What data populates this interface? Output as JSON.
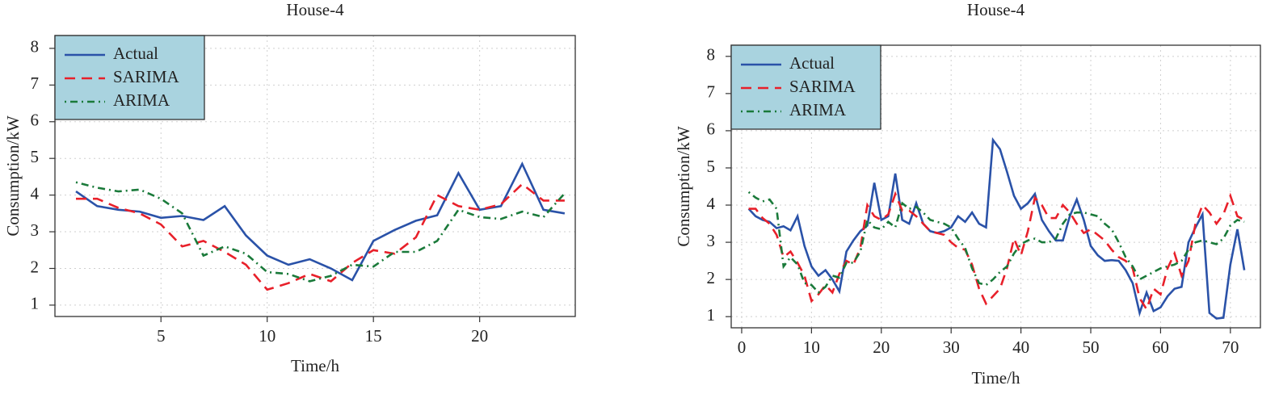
{
  "chart_data": [
    {
      "type": "line",
      "title": "House-4",
      "x_label": "Time/h",
      "y_label": "Consumption/kW",
      "x": [
        1,
        2,
        3,
        4,
        5,
        6,
        7,
        8,
        9,
        10,
        11,
        12,
        13,
        14,
        15,
        16,
        17,
        18,
        19,
        20,
        21,
        22,
        23,
        24
      ],
      "series": [
        {
          "name": "Actual",
          "color": "#2a52a8",
          "style": "solid",
          "values": [
            4.1,
            3.7,
            3.6,
            3.55,
            3.38,
            3.43,
            3.32,
            3.7,
            2.9,
            2.35,
            2.1,
            2.25,
            2.0,
            1.68,
            2.75,
            3.05,
            3.3,
            3.45,
            4.6,
            3.6,
            3.7,
            4.85,
            3.6,
            3.5
          ]
        },
        {
          "name": "SARIMA",
          "color": "#e8202a",
          "style": "dashed",
          "values": [
            3.9,
            3.9,
            3.65,
            3.5,
            3.2,
            2.6,
            2.75,
            2.45,
            2.1,
            1.42,
            1.6,
            1.85,
            1.65,
            2.15,
            2.5,
            2.4,
            2.85,
            4.0,
            3.7,
            3.6,
            3.75,
            4.3,
            3.85,
            3.85
          ]
        },
        {
          "name": "ARIMA",
          "color": "#1a7a3a",
          "style": "dotdash",
          "values": [
            4.35,
            4.2,
            4.1,
            4.15,
            3.9,
            3.5,
            2.35,
            2.6,
            2.4,
            1.9,
            1.85,
            1.65,
            1.8,
            2.1,
            2.05,
            2.45,
            2.45,
            2.75,
            3.6,
            3.4,
            3.35,
            3.55,
            3.4,
            4.05
          ]
        }
      ],
      "xlim": [
        0.01,
        24.5
      ],
      "ylim": [
        0.69,
        8.35
      ],
      "xticks": [
        5,
        10,
        15,
        20
      ],
      "yticks": [
        1,
        2,
        3,
        4,
        5,
        6,
        7,
        8
      ],
      "grid": true,
      "legend": "top-left",
      "legend_color": "#a9d3df"
    },
    {
      "type": "line",
      "title": "House-4",
      "x_label": "Time/h",
      "y_label": "Consumption/kW",
      "x": [
        1,
        2,
        3,
        4,
        5,
        6,
        7,
        8,
        9,
        10,
        11,
        12,
        13,
        14,
        15,
        16,
        17,
        18,
        19,
        20,
        21,
        22,
        23,
        24,
        25,
        26,
        27,
        28,
        29,
        30,
        31,
        32,
        33,
        34,
        35,
        36,
        37,
        38,
        39,
        40,
        41,
        42,
        43,
        44,
        45,
        46,
        47,
        48,
        49,
        50,
        51,
        52,
        53,
        54,
        55,
        56,
        57,
        58,
        59,
        60,
        61,
        62,
        63,
        64,
        65,
        66,
        67,
        68,
        69,
        70,
        71,
        72
      ],
      "series": [
        {
          "name": "Actual",
          "color": "#2a52a8",
          "style": "solid",
          "values": [
            3.9,
            3.7,
            3.6,
            3.55,
            3.38,
            3.43,
            3.32,
            3.7,
            2.9,
            2.35,
            2.1,
            2.25,
            2.0,
            1.68,
            2.75,
            3.05,
            3.3,
            3.45,
            4.6,
            3.6,
            3.7,
            4.85,
            3.6,
            3.5,
            4.05,
            3.5,
            3.3,
            3.25,
            3.3,
            3.4,
            3.7,
            3.55,
            3.8,
            3.5,
            3.4,
            5.75,
            5.5,
            4.9,
            4.25,
            3.9,
            4.05,
            4.3,
            3.6,
            3.3,
            3.05,
            3.05,
            3.7,
            4.15,
            3.6,
            2.9,
            2.65,
            2.5,
            2.52,
            2.5,
            2.25,
            1.9,
            1.1,
            1.65,
            1.15,
            1.25,
            1.55,
            1.75,
            1.8,
            3.0,
            3.4,
            3.75,
            1.1,
            0.95,
            0.97,
            2.4,
            3.35,
            2.25
          ]
        },
        {
          "name": "SARIMA",
          "color": "#e8202a",
          "style": "dashed",
          "values": [
            3.9,
            3.9,
            3.65,
            3.5,
            3.2,
            2.6,
            2.75,
            2.45,
            2.1,
            1.42,
            1.6,
            1.85,
            1.65,
            2.15,
            2.5,
            2.4,
            2.85,
            4.0,
            3.7,
            3.6,
            3.75,
            4.3,
            3.85,
            3.85,
            3.7,
            3.5,
            3.3,
            3.25,
            3.2,
            3.0,
            2.85,
            2.8,
            2.4,
            1.75,
            1.35,
            1.55,
            1.75,
            2.3,
            3.1,
            2.65,
            3.3,
            4.2,
            4.0,
            3.65,
            3.65,
            4.0,
            3.8,
            3.5,
            3.25,
            3.35,
            3.2,
            3.05,
            2.8,
            2.6,
            2.5,
            2.3,
            1.5,
            1.2,
            1.75,
            1.6,
            2.3,
            2.7,
            2.1,
            2.5,
            3.5,
            4.0,
            3.8,
            3.5,
            3.75,
            4.25,
            3.7,
            3.6
          ]
        },
        {
          "name": "ARIMA",
          "color": "#1a7a3a",
          "style": "dotdash",
          "values": [
            4.35,
            4.2,
            4.1,
            4.15,
            3.9,
            2.35,
            2.6,
            2.4,
            1.9,
            1.85,
            1.65,
            1.8,
            2.1,
            2.05,
            2.45,
            2.45,
            2.75,
            3.6,
            3.4,
            3.35,
            3.55,
            3.4,
            4.05,
            3.9,
            3.95,
            3.8,
            3.6,
            3.55,
            3.5,
            3.4,
            3.1,
            2.85,
            2.3,
            1.9,
            1.85,
            2.0,
            2.2,
            2.35,
            2.7,
            2.95,
            3.05,
            3.1,
            3.0,
            3.0,
            3.1,
            3.5,
            3.75,
            3.8,
            3.8,
            3.75,
            3.7,
            3.5,
            3.35,
            3.0,
            2.6,
            2.35,
            2.0,
            2.1,
            2.2,
            2.3,
            2.35,
            2.4,
            2.5,
            2.8,
            3.0,
            3.05,
            3.0,
            2.95,
            3.1,
            3.45,
            3.6,
            3.55
          ]
        }
      ],
      "xlim": [
        -1.5,
        74.3
      ],
      "ylim": [
        0.7,
        8.3
      ],
      "xticks": [
        0,
        10,
        20,
        30,
        40,
        50,
        60,
        70
      ],
      "yticks": [
        1,
        2,
        3,
        4,
        5,
        6,
        7,
        8
      ],
      "grid": true,
      "legend": "top-left",
      "legend_color": "#a9d3df"
    }
  ]
}
